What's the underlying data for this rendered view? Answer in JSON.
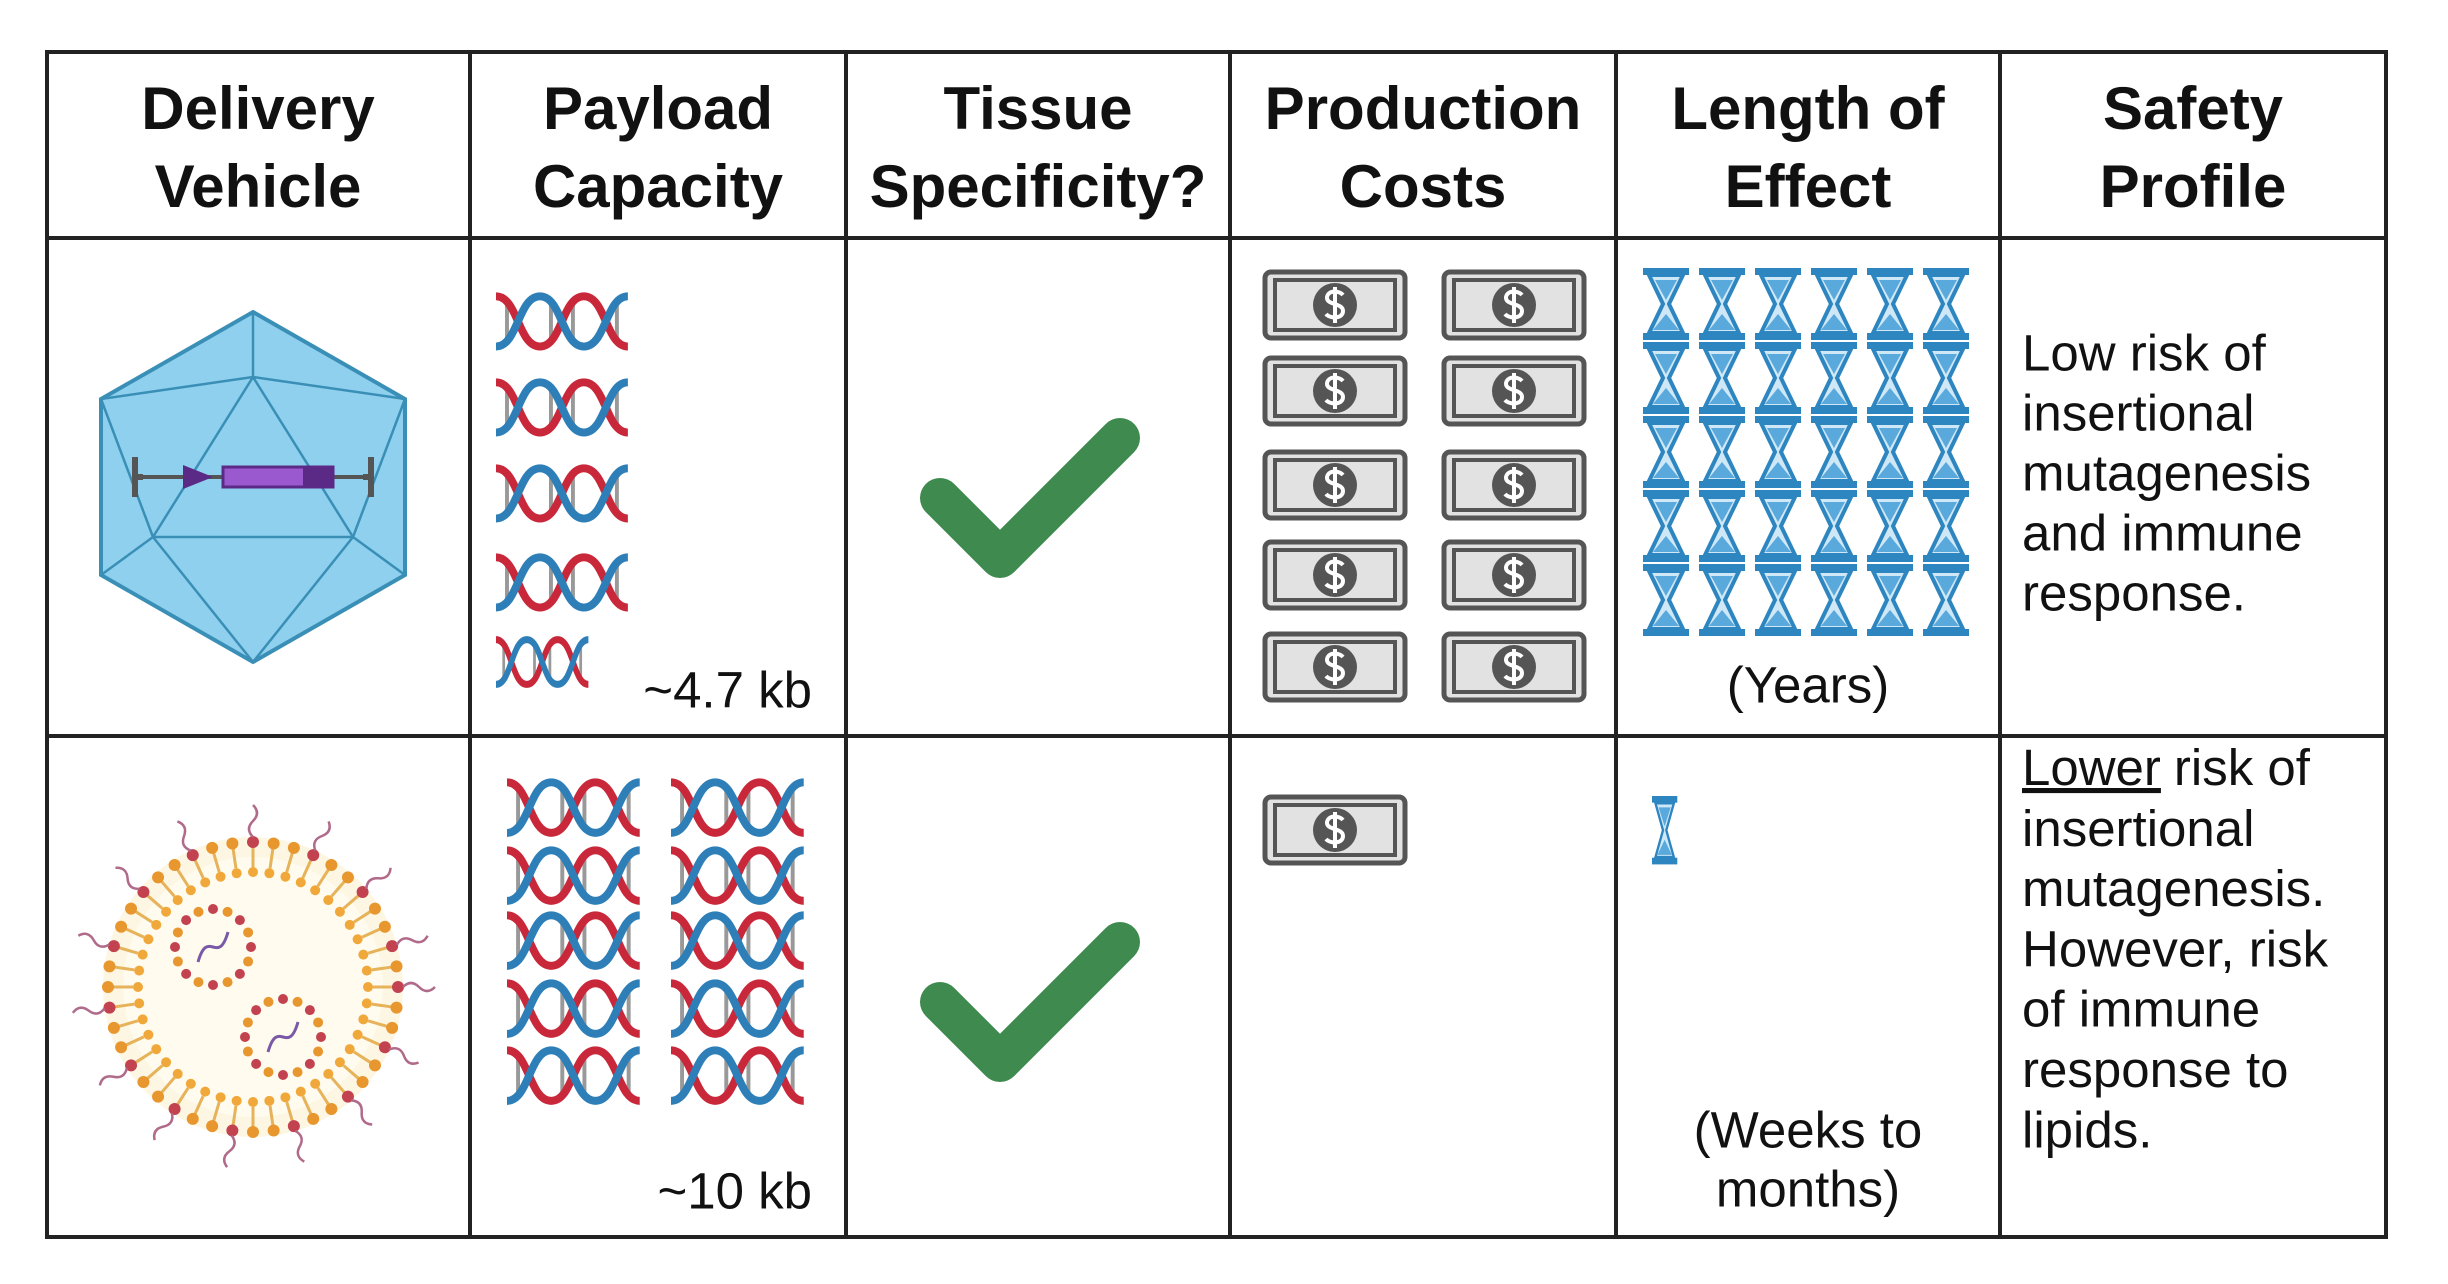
{
  "table": {
    "headers": [
      [
        "Delivery",
        "Vehicle"
      ],
      [
        "Payload",
        "Capacity"
      ],
      [
        "Tissue",
        "Specificity?"
      ],
      [
        "Production",
        "Costs"
      ],
      [
        "Length of",
        "Effect"
      ],
      [
        "Safety",
        "Profile"
      ]
    ],
    "rows": [
      {
        "payload": "~4.7 kb",
        "length": [
          "(Years)"
        ],
        "safety": [
          "Low risk of",
          "insertional",
          "mutagenesis",
          "and immune",
          "response."
        ]
      },
      {
        "payload": "~10 kb",
        "length": [
          "(Weeks to",
          "months)"
        ],
        "safety": [
          {
            "underline": "Lower",
            "rest": "risk of"
          },
          "insertional",
          "mutagenesis.",
          "However, risk",
          "of immune",
          "response to",
          "lipids."
        ]
      }
    ]
  }
}
